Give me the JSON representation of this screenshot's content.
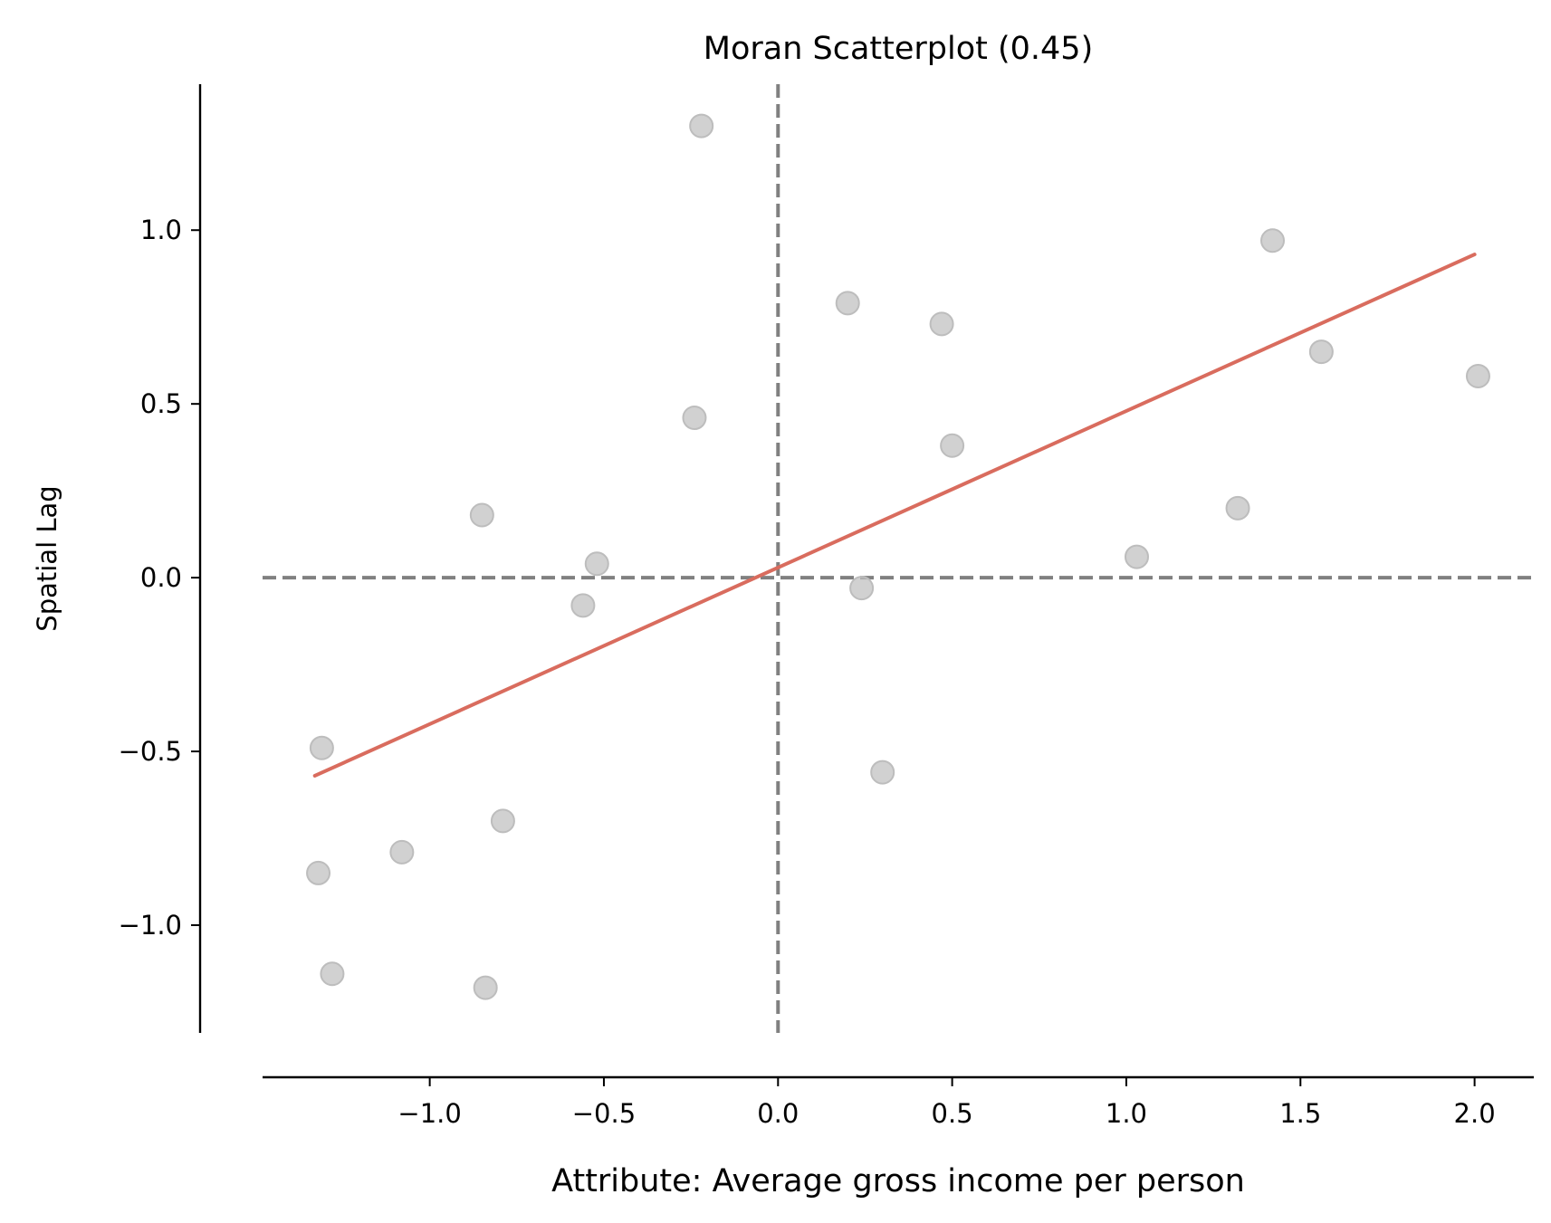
{
  "chart_data": {
    "type": "scatter",
    "title": "Moran Scatterplot (0.45)",
    "xlabel": "Attribute: Average gross income per person",
    "ylabel": "Spatial Lag",
    "xlim": [
      -1.48,
      2.17
    ],
    "ylim": [
      -1.31,
      1.42
    ],
    "xticks": [
      -1.0,
      -0.5,
      0.0,
      0.5,
      1.0,
      1.5,
      2.0
    ],
    "xtick_labels": [
      "−1.0",
      "−0.5",
      "0.0",
      "0.5",
      "1.0",
      "1.5",
      "2.0"
    ],
    "yticks": [
      -1.0,
      -0.5,
      0.0,
      0.5,
      1.0
    ],
    "ytick_labels": [
      "−1.0",
      "−0.5",
      "0.0",
      "0.5",
      "1.0"
    ],
    "grid": false,
    "points": [
      {
        "x": -0.22,
        "y": 1.3
      },
      {
        "x": 1.42,
        "y": 0.97
      },
      {
        "x": 0.2,
        "y": 0.79
      },
      {
        "x": 0.47,
        "y": 0.73
      },
      {
        "x": 1.56,
        "y": 0.65
      },
      {
        "x": 2.01,
        "y": 0.58
      },
      {
        "x": -0.24,
        "y": 0.46
      },
      {
        "x": 0.5,
        "y": 0.38
      },
      {
        "x": -0.85,
        "y": 0.18
      },
      {
        "x": 1.32,
        "y": 0.2
      },
      {
        "x": 1.03,
        "y": 0.06
      },
      {
        "x": -0.52,
        "y": 0.04
      },
      {
        "x": -0.56,
        "y": -0.08
      },
      {
        "x": 0.24,
        "y": -0.03
      },
      {
        "x": -1.31,
        "y": -0.49
      },
      {
        "x": 0.3,
        "y": -0.56
      },
      {
        "x": -0.79,
        "y": -0.7
      },
      {
        "x": -1.08,
        "y": -0.79
      },
      {
        "x": -1.32,
        "y": -0.85
      },
      {
        "x": -1.28,
        "y": -1.14
      },
      {
        "x": -0.84,
        "y": -1.18
      }
    ],
    "fit_line": {
      "x": [
        -1.33,
        2.0
      ],
      "y": [
        -0.57,
        0.93
      ]
    },
    "reference_lines": {
      "vertical_x": 0.0,
      "horizontal_y": 0.0
    },
    "colors": {
      "points": "#bdbdbd",
      "fit_line": "#d96c5e",
      "reference_lines": "#808080",
      "axes": "#000000"
    }
  }
}
